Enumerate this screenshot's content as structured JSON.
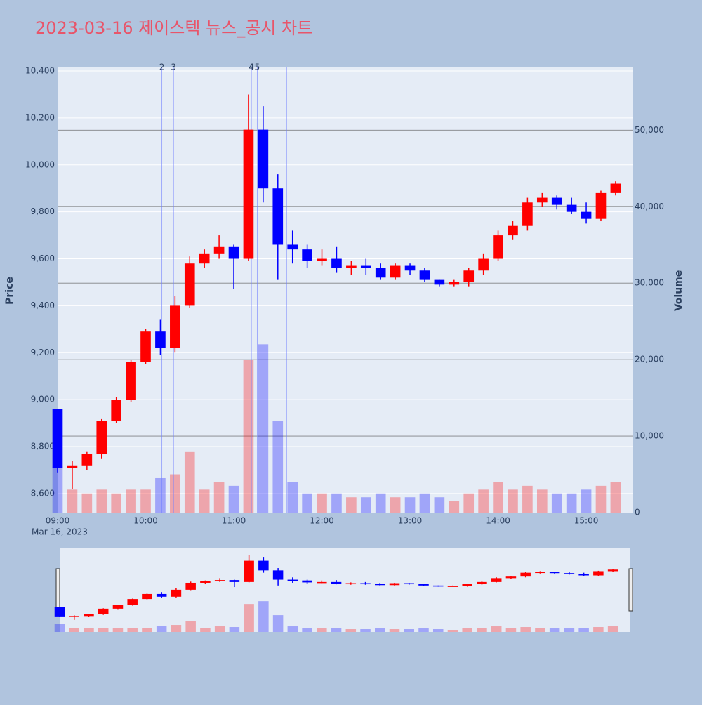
{
  "chart_data": {
    "type": "candlestick",
    "title": "2023-03-16 제이스텍 뉴스_공시 차트",
    "y_title": "Price",
    "y2_title": "Volume",
    "date_label": "Mar 16, 2023",
    "increasing_color": "#ff0000",
    "decreasing_color": "#0000ff",
    "x": [
      "09:00",
      "09:10",
      "09:20",
      "09:30",
      "09:40",
      "09:50",
      "10:00",
      "10:10",
      "10:20",
      "10:30",
      "10:40",
      "10:50",
      "11:00",
      "11:10",
      "11:20",
      "11:30",
      "11:40",
      "11:50",
      "12:00",
      "12:10",
      "12:20",
      "12:30",
      "12:40",
      "12:50",
      "13:00",
      "13:10",
      "13:20",
      "13:30",
      "13:40",
      "13:50",
      "14:00",
      "14:10",
      "14:20",
      "14:30",
      "14:40",
      "14:50",
      "15:00",
      "15:10",
      "15:20"
    ],
    "open": [
      8960,
      8710,
      8720,
      8770,
      8910,
      9000,
      9160,
      9290,
      9220,
      9400,
      9580,
      9620,
      9650,
      9600,
      10150,
      9900,
      9660,
      9640,
      9590,
      9600,
      9560,
      9570,
      9560,
      9520,
      9570,
      9550,
      9510,
      9490,
      9500,
      9550,
      9600,
      9700,
      9740,
      9840,
      9860,
      9830,
      9800,
      9770,
      9880
    ],
    "high": [
      8960,
      8740,
      8780,
      8920,
      9010,
      9170,
      9300,
      9340,
      9440,
      9610,
      9640,
      9700,
      9660,
      10300,
      10250,
      9960,
      9720,
      9660,
      9640,
      9650,
      9590,
      9600,
      9580,
      9580,
      9580,
      9560,
      9510,
      9510,
      9560,
      9620,
      9720,
      9760,
      9860,
      9880,
      9870,
      9860,
      9840,
      9890,
      9930
    ],
    "low": [
      8690,
      8620,
      8700,
      8750,
      8900,
      8990,
      9150,
      9190,
      9200,
      9390,
      9560,
      9600,
      9470,
      9590,
      9840,
      9510,
      9580,
      9560,
      9570,
      9540,
      9530,
      9530,
      9510,
      9510,
      9530,
      9500,
      9480,
      9480,
      9480,
      9530,
      9590,
      9680,
      9720,
      9820,
      9810,
      9790,
      9750,
      9760,
      9870
    ],
    "close": [
      8710,
      8720,
      8770,
      8910,
      9000,
      9160,
      9290,
      9220,
      9400,
      9580,
      9620,
      9650,
      9600,
      10150,
      9900,
      9660,
      9640,
      9590,
      9600,
      9560,
      9570,
      9560,
      9520,
      9570,
      9550,
      9510,
      9490,
      9500,
      9550,
      9600,
      9700,
      9740,
      9840,
      9860,
      9830,
      9800,
      9770,
      9880,
      9920
    ],
    "volume": [
      6000,
      3000,
      2500,
      3000,
      2500,
      3000,
      3000,
      4500,
      5000,
      8000,
      3000,
      4000,
      3500,
      20000,
      22000,
      12000,
      4000,
      2500,
      2500,
      2500,
      2000,
      2000,
      2500,
      2000,
      2000,
      2500,
      2000,
      1500,
      2500,
      3000,
      4000,
      3000,
      3500,
      3000,
      2500,
      2500,
      3000,
      3500,
      4000
    ],
    "news_lines": {
      "x": [
        "10:11",
        "10:19",
        "11:12",
        "11:16",
        "11:36"
      ],
      "labels": [
        "2",
        "3",
        "4",
        "5",
        null
      ]
    },
    "xlim": [
      "09:00",
      "15:32"
    ],
    "xticks": [
      "09:00",
      "10:00",
      "11:00",
      "12:00",
      "13:00",
      "14:00",
      "15:00"
    ],
    "ylim": [
      8519,
      10415
    ],
    "yticks": [
      {
        "value": 8600,
        "label": "8,600"
      },
      {
        "value": 8800,
        "label": "8,800"
      },
      {
        "value": 9000,
        "label": "9,000"
      },
      {
        "value": 9200,
        "label": "9,200"
      },
      {
        "value": 9400,
        "label": "9,400"
      },
      {
        "value": 9600,
        "label": "9,600"
      },
      {
        "value": 9800,
        "label": "9,800"
      },
      {
        "value": 10000,
        "label": "10,000"
      },
      {
        "value": 10200,
        "label": "10,200"
      },
      {
        "value": 10400,
        "label": "10,400"
      }
    ],
    "y2lim": [
      0,
      58200
    ],
    "y2ticks": [
      0,
      {
        "value": 10000,
        "label": "10,000"
      },
      {
        "value": 20000,
        "label": "20,000"
      },
      {
        "value": 30000,
        "label": "30,000"
      },
      {
        "value": 40000,
        "label": "40,000"
      },
      {
        "value": 50000,
        "label": "50,000"
      }
    ],
    "grid": true
  }
}
